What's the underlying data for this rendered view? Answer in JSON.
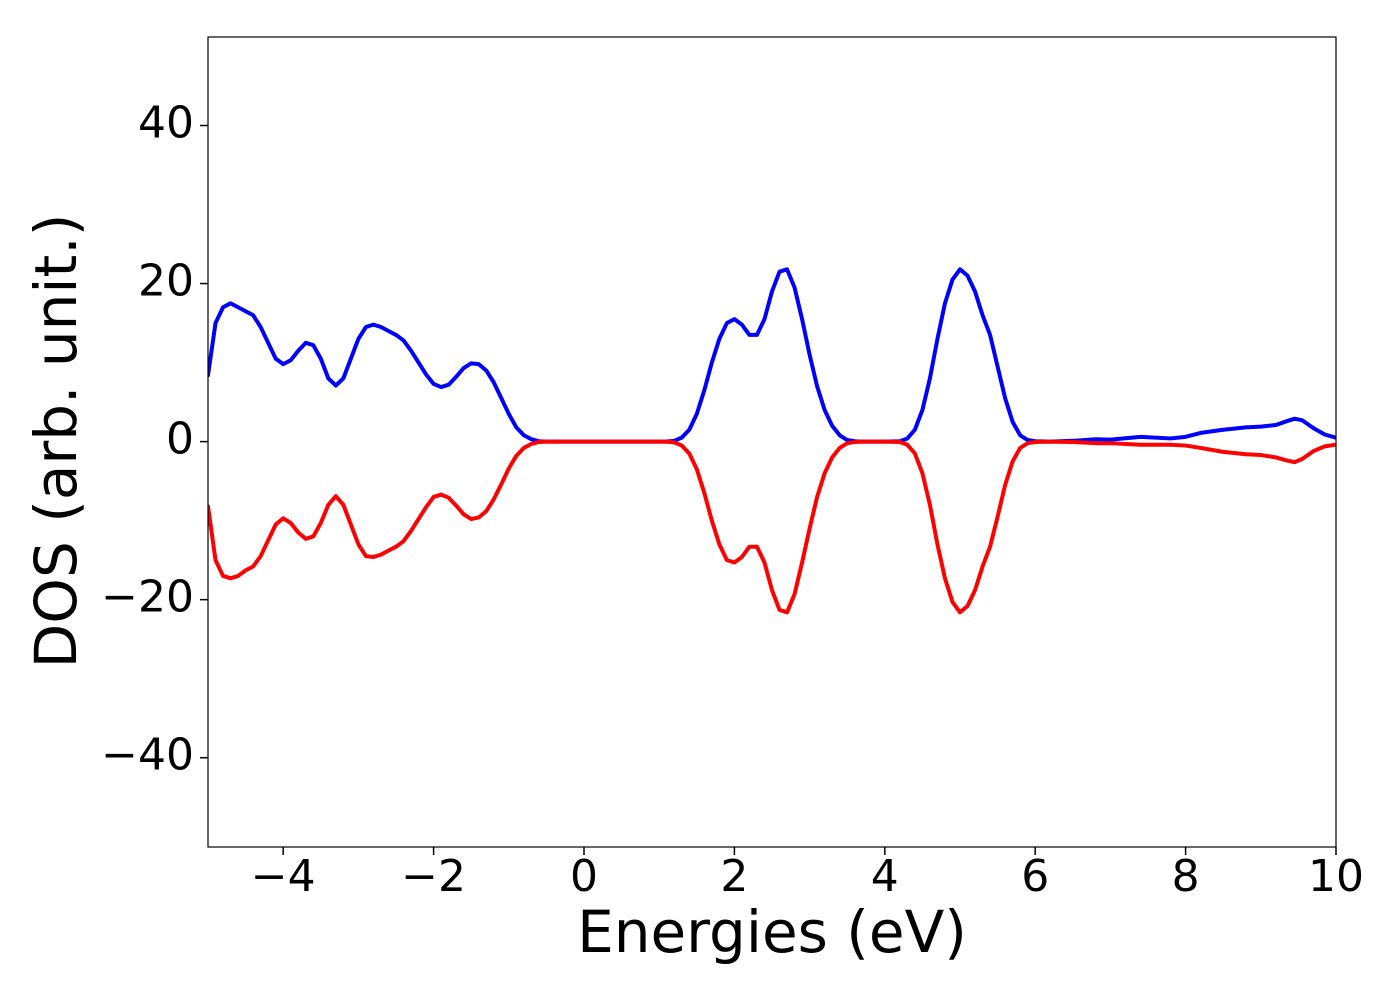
{
  "chart_data": {
    "type": "line",
    "x_label": "Energies (eV)",
    "y_label": "DOS (arb. unit.)",
    "x": [
      -5,
      -4.9,
      -4.8,
      -4.7,
      -4.6,
      -4.5,
      -4.4,
      -4.3,
      -4.2,
      -4.1,
      -4,
      -3.9,
      -3.8,
      -3.7,
      -3.6,
      -3.5,
      -3.4,
      -3.3,
      -3.2,
      -3.1,
      -3,
      -2.9,
      -2.8,
      -2.7,
      -2.6,
      -2.5,
      -2.4,
      -2.3,
      -2.2,
      -2.1,
      -2,
      -1.9,
      -1.8,
      -1.7,
      -1.6,
      -1.5,
      -1.4,
      -1.3,
      -1.2,
      -1.1,
      -1,
      -0.9,
      -0.8,
      -0.7,
      -0.6,
      -0.5,
      0,
      0.5,
      1,
      1.1,
      1.2,
      1.3,
      1.4,
      1.5,
      1.6,
      1.7,
      1.8,
      1.9,
      2,
      2.1,
      2.2,
      2.3,
      2.4,
      2.5,
      2.6,
      2.7,
      2.8,
      2.9,
      3,
      3.1,
      3.2,
      3.3,
      3.4,
      3.5,
      3.6,
      3.7,
      4,
      4.2,
      4.3,
      4.4,
      4.5,
      4.6,
      4.7,
      4.8,
      4.9,
      5,
      5.1,
      5.2,
      5.3,
      5.4,
      5.5,
      5.6,
      5.7,
      5.8,
      5.9,
      6,
      6.2,
      6.5,
      6.8,
      7,
      7.4,
      7.8,
      8,
      8.2,
      8.5,
      8.8,
      9,
      9.2,
      9.35,
      9.45,
      9.55,
      9.7,
      9.85,
      10
    ],
    "series": [
      {
        "color": "#0000ff",
        "values": [
          8.4,
          15,
          17,
          17.5,
          17,
          16.5,
          16,
          14.5,
          12.5,
          10.5,
          9.8,
          10.3,
          11.5,
          12.5,
          12.2,
          10.5,
          8,
          7.1,
          8,
          10.5,
          13,
          14.5,
          14.8,
          14.5,
          14,
          13.5,
          12.8,
          11.5,
          10,
          8.5,
          7.3,
          6.9,
          7.2,
          8.2,
          9.3,
          9.9,
          9.8,
          9,
          7.5,
          5.5,
          3.5,
          1.8,
          0.8,
          0.3,
          0.05,
          0,
          0,
          0,
          0,
          0.02,
          0.1,
          0.5,
          1.5,
          3.5,
          6.5,
          10,
          13,
          15,
          15.5,
          14.8,
          13.5,
          13.5,
          15.5,
          19,
          21.5,
          21.8,
          19.5,
          15.5,
          11,
          7,
          4,
          2,
          0.8,
          0.2,
          0.05,
          0,
          0,
          0.05,
          0.4,
          1.5,
          4,
          8,
          13,
          17.5,
          20.5,
          21.8,
          21,
          19,
          16,
          13.5,
          9.5,
          5.5,
          2.5,
          0.8,
          0.2,
          0.05,
          0,
          0.1,
          0.3,
          0.25,
          0.6,
          0.4,
          0.6,
          1.1,
          1.5,
          1.8,
          1.9,
          2.1,
          2.6,
          2.9,
          2.7,
          1.7,
          0.9,
          0.5
        ]
      },
      {
        "color": "#ff0000",
        "values": [
          -8.2,
          -15,
          -17,
          -17.3,
          -17,
          -16.3,
          -15.8,
          -14.5,
          -12.5,
          -10.5,
          -9.7,
          -10.3,
          -11.5,
          -12.3,
          -12,
          -10.3,
          -8,
          -6.9,
          -8,
          -10.5,
          -13,
          -14.5,
          -14.6,
          -14.3,
          -13.8,
          -13.3,
          -12.6,
          -11.3,
          -9.8,
          -8.3,
          -7,
          -6.7,
          -7.1,
          -8.1,
          -9.2,
          -9.8,
          -9.6,
          -8.8,
          -7.3,
          -5.4,
          -3.4,
          -1.8,
          -0.8,
          -0.3,
          -0.05,
          0,
          0,
          0,
          0,
          -0.02,
          -0.1,
          -0.5,
          -1.5,
          -3.5,
          -6.5,
          -10,
          -13,
          -15,
          -15.3,
          -14.6,
          -13.3,
          -13.3,
          -15.3,
          -18.8,
          -21.3,
          -21.6,
          -19.3,
          -15.3,
          -11,
          -7,
          -4,
          -2,
          -0.8,
          -0.2,
          -0.05,
          0,
          0,
          -0.05,
          -0.4,
          -1.5,
          -4,
          -8,
          -13,
          -17.3,
          -20.3,
          -21.6,
          -20.8,
          -18.8,
          -15.8,
          -13.3,
          -9.5,
          -5.5,
          -2.5,
          -0.8,
          -0.2,
          -0.05,
          0,
          -0.05,
          -0.2,
          -0.2,
          -0.4,
          -0.4,
          -0.5,
          -0.8,
          -1.3,
          -1.6,
          -1.7,
          -2,
          -2.4,
          -2.6,
          -2.2,
          -1.2,
          -0.6,
          -0.4
        ]
      }
    ],
    "xlim": [
      -5,
      10
    ],
    "xticks": [
      {
        "value": -4,
        "label": "−4"
      },
      {
        "value": -2,
        "label": "−2"
      },
      0,
      2,
      4,
      6,
      8,
      10
    ],
    "ylim": [
      -51.3,
      51.2
    ],
    "yticks": [
      {
        "value": -40,
        "label": "−40"
      },
      {
        "value": -20,
        "label": "−20"
      },
      0,
      20,
      40
    ]
  }
}
